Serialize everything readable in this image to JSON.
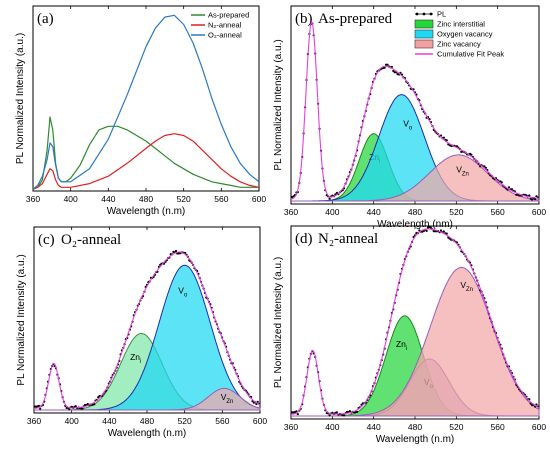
{
  "chart_data": [
    {
      "id": "a",
      "type": "line",
      "panel_label": "(a)",
      "title": "",
      "xlabel": "Wavelength (n.m)",
      "ylabel": "PL Normalized Intensity (a.u.)",
      "xlim": [
        360,
        600
      ],
      "ylim": [
        0,
        1
      ],
      "xticks": [
        360,
        400,
        440,
        480,
        520,
        560,
        600
      ],
      "legend_position": "top-right",
      "series": [
        {
          "name": "As-prepared",
          "color": "#2e8b2e",
          "x": [
            360,
            365,
            370,
            375,
            378,
            381,
            384,
            387,
            390,
            395,
            400,
            410,
            420,
            430,
            440,
            450,
            460,
            470,
            480,
            490,
            500,
            510,
            520,
            530,
            540,
            550,
            560,
            570,
            580,
            590,
            600
          ],
          "y": [
            0.01,
            0.02,
            0.06,
            0.22,
            0.4,
            0.33,
            0.15,
            0.07,
            0.05,
            0.05,
            0.07,
            0.14,
            0.25,
            0.33,
            0.35,
            0.35,
            0.33,
            0.3,
            0.27,
            0.23,
            0.19,
            0.15,
            0.12,
            0.09,
            0.07,
            0.05,
            0.04,
            0.03,
            0.02,
            0.02,
            0.02
          ]
        },
        {
          "name": "N$_2$-anneal",
          "label": "N₂-anneal",
          "color": "#e02020",
          "x": [
            360,
            365,
            370,
            375,
            378,
            381,
            384,
            387,
            390,
            400,
            420,
            440,
            460,
            480,
            490,
            500,
            510,
            520,
            530,
            540,
            550,
            560,
            570,
            580,
            590,
            600
          ],
          "y": [
            0.01,
            0.02,
            0.04,
            0.09,
            0.12,
            0.11,
            0.06,
            0.03,
            0.02,
            0.02,
            0.04,
            0.08,
            0.15,
            0.23,
            0.27,
            0.3,
            0.31,
            0.3,
            0.27,
            0.22,
            0.17,
            0.12,
            0.08,
            0.05,
            0.03,
            0.02
          ]
        },
        {
          "name": "O$_2$-anneal",
          "label": "O₂-anneal",
          "color": "#2a78c8",
          "x": [
            360,
            365,
            370,
            375,
            378,
            381,
            384,
            387,
            390,
            400,
            420,
            440,
            460,
            480,
            490,
            500,
            510,
            520,
            530,
            540,
            550,
            560,
            570,
            580,
            590,
            600
          ],
          "y": [
            0.01,
            0.03,
            0.08,
            0.17,
            0.26,
            0.24,
            0.14,
            0.07,
            0.05,
            0.05,
            0.12,
            0.28,
            0.52,
            0.78,
            0.88,
            0.94,
            0.95,
            0.9,
            0.8,
            0.66,
            0.5,
            0.36,
            0.24,
            0.15,
            0.09,
            0.05
          ]
        }
      ]
    },
    {
      "id": "b",
      "type": "area",
      "panel_label": "(b)",
      "title": "As-prepared",
      "xlabel": "Wavelength (nm)",
      "ylabel": "PL Normalized Intensity (a.u.)",
      "xlim": [
        360,
        600
      ],
      "ylim": [
        0,
        1.1
      ],
      "xticks": [
        360,
        400,
        440,
        480,
        520,
        560,
        600
      ],
      "legend_position": "top-right",
      "legend": [
        {
          "name": "PL",
          "color": "#000000",
          "kind": "dots"
        },
        {
          "name": "Zinc interstitial",
          "color": "#22d63c",
          "kind": "box"
        },
        {
          "name": "Oxygen vacancy",
          "color": "#1fd8f2",
          "kind": "box"
        },
        {
          "name": "Zinc vacancy",
          "color": "#f4a0a0",
          "kind": "box"
        },
        {
          "name": "Cumulative Fit Peak",
          "color": "#e53fe0",
          "kind": "line"
        }
      ],
      "uv_peak": {
        "center": 380,
        "width": 5.5,
        "amp": 1.0
      },
      "components": [
        {
          "name": "Zinc interstitial",
          "label": "Zn",
          "sub": "i",
          "center": 440,
          "sigma": 14,
          "amp": 0.38,
          "fill": "#22d63c",
          "edge": "#188a1a",
          "label_x": 441,
          "label_y": 0.23
        },
        {
          "name": "Oxygen vacancy",
          "label": "V",
          "sub": "o",
          "center": 467,
          "sigma": 22,
          "amp": 0.6,
          "fill": "#1fd8f2",
          "edge": "#1a2fb0",
          "label_x": 473,
          "label_y": 0.42
        },
        {
          "name": "Zinc vacancy",
          "label": "V",
          "sub": "Zn",
          "center": 522,
          "sigma": 28,
          "amp": 0.26,
          "fill": "#f2a8a8",
          "edge": "#9b5db8",
          "label_x": 526,
          "label_y": 0.16
        }
      ]
    },
    {
      "id": "c",
      "type": "area",
      "panel_label": "(c)",
      "title": "O₂-anneal",
      "xlabel": "Wavelength (n.m)",
      "ylabel": "PL Normalized Intensity (a.u.)",
      "xlim": [
        360,
        600
      ],
      "ylim": [
        0,
        1.1
      ],
      "xticks": [
        360,
        400,
        440,
        480,
        520,
        560,
        600
      ],
      "uv_peak": {
        "center": 381,
        "width": 5.5,
        "amp": 0.27
      },
      "components": [
        {
          "name": "Zinc interstitial",
          "label": "Zn",
          "sub": "i",
          "center": 474,
          "sigma": 22,
          "amp": 0.46,
          "fill": "#7ee8a8",
          "edge": "#3e8e3e",
          "label_x": 468,
          "label_y": 0.3
        },
        {
          "name": "Oxygen vacancy",
          "label": "V",
          "sub": "o",
          "center": 520,
          "sigma": 27,
          "amp": 0.87,
          "fill": "#1fd8f2",
          "edge": "#1a2fb0",
          "label_x": 518,
          "label_y": 0.7
        },
        {
          "name": "Zinc vacancy",
          "label": "V",
          "sub": "Zn",
          "center": 562,
          "sigma": 17,
          "amp": 0.13,
          "fill": "#f2a8a8",
          "edge": "#9b5db8",
          "label_x": 565,
          "label_y": 0.06
        }
      ]
    },
    {
      "id": "d",
      "type": "area",
      "panel_label": "(d)",
      "title": "N₂-anneal",
      "xlabel": "Wavelength (n.m)",
      "ylabel": "PL Normalized Intensity (a.u.)",
      "xlim": [
        360,
        600
      ],
      "ylim": [
        0,
        1.1
      ],
      "xticks": [
        360,
        400,
        440,
        480,
        520,
        560,
        600
      ],
      "uv_peak": {
        "center": 381,
        "width": 5.5,
        "amp": 0.37
      },
      "components": [
        {
          "name": "Zinc interstitial",
          "label": "Zn",
          "sub": "i",
          "center": 470,
          "sigma": 18,
          "amp": 0.58,
          "fill": "#22d63c",
          "edge": "#188a1a",
          "label_x": 467,
          "label_y": 0.4
        },
        {
          "name": "Oxygen vacancy",
          "label": "V",
          "sub": "o",
          "center": 494,
          "sigma": 19,
          "amp": 0.33,
          "fill": "#b89fc8",
          "edge": "#7a4fb0",
          "label_x": 493,
          "label_y": 0.18
        },
        {
          "name": "Zinc vacancy",
          "label": "V",
          "sub": "Zn",
          "center": 525,
          "sigma": 30,
          "amp": 0.86,
          "fill": "#f2a8a8",
          "edge": "#9b5db8",
          "label_x": 530,
          "label_y": 0.74
        }
      ]
    }
  ]
}
